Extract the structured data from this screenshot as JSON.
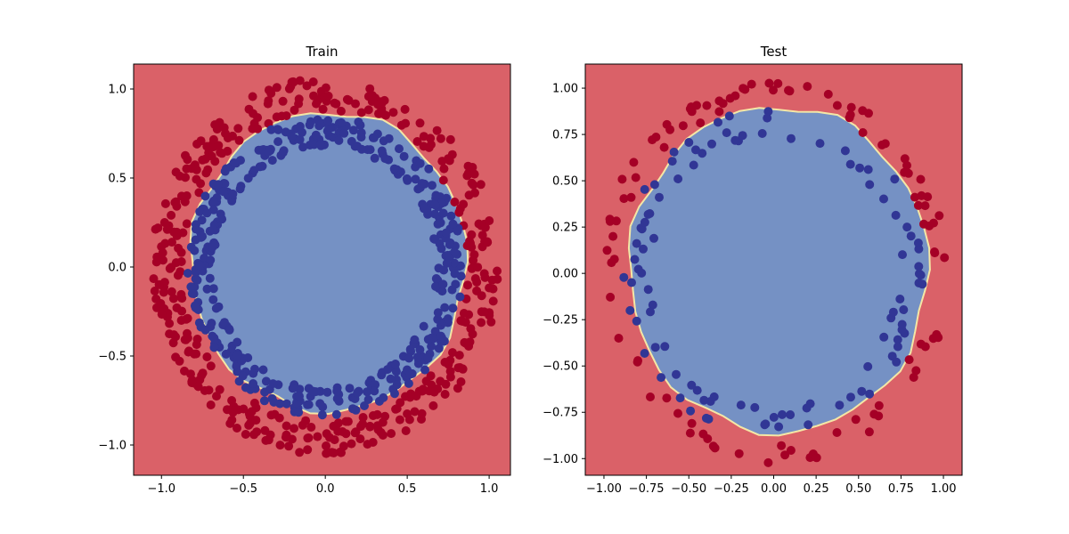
{
  "colors": {
    "outside_region": "#da6168",
    "inside_region": "#7591c4",
    "boundary": "#f4e7a6",
    "class_outer_points": "#a50026",
    "class_inner_points": "#313695"
  },
  "chart_data": [
    {
      "type": "scatter",
      "title": "Train",
      "xlabel": "",
      "ylabel": "",
      "xlim": [
        -1.17,
        1.13
      ],
      "ylim": [
        -1.17,
        1.14
      ],
      "x_ticks": [
        -1.0,
        -0.5,
        0.0,
        0.5,
        1.0
      ],
      "x_tick_labels": [
        "−1.0",
        "−0.5",
        "0.0",
        "0.5",
        "1.0"
      ],
      "y_ticks": [
        -1.0,
        -0.5,
        0.0,
        0.5,
        1.0
      ],
      "y_tick_labels": [
        "−1.0",
        "−0.5",
        "0.0",
        "0.5",
        "1.0"
      ],
      "decision_region": {
        "inside_class": 0,
        "center": [
          0.02,
          0.03
        ],
        "radius": 0.84
      },
      "classes": [
        {
          "label": 1,
          "color_key": "class_outer_points",
          "center": [
            0.0,
            0.0
          ],
          "radius_range": [
            0.87,
            1.06
          ],
          "count": 400,
          "seed": 11
        },
        {
          "label": 0,
          "color_key": "class_inner_points",
          "center": [
            0.0,
            0.0
          ],
          "radius_range": [
            0.68,
            0.84
          ],
          "count": 400,
          "seed": 23
        }
      ],
      "grid": false
    },
    {
      "type": "scatter",
      "title": "Test",
      "xlabel": "",
      "ylabel": "",
      "xlim": [
        -1.11,
        1.11
      ],
      "ylim": [
        -1.09,
        1.13
      ],
      "x_ticks": [
        -1.0,
        -0.75,
        -0.5,
        -0.25,
        0.0,
        0.25,
        0.5,
        0.75,
        1.0
      ],
      "x_tick_labels": [
        "−1.00",
        "−0.75",
        "−0.50",
        "−0.25",
        "0.00",
        "0.25",
        "0.50",
        "0.75",
        "1.00"
      ],
      "y_ticks": [
        -1.0,
        -0.75,
        -0.5,
        -0.25,
        0.0,
        0.25,
        0.5,
        0.75,
        1.0
      ],
      "y_tick_labels": [
        "−1.00",
        "−0.75",
        "−0.50",
        "−0.25",
        "0.00",
        "0.25",
        "0.50",
        "0.75",
        "1.00"
      ],
      "decision_region": {
        "inside_class": 0,
        "center": [
          0.03,
          0.02
        ],
        "radius": 0.88
      },
      "classes": [
        {
          "label": 1,
          "color_key": "class_outer_points",
          "center": [
            0.0,
            0.0
          ],
          "radius_range": [
            0.92,
            1.03
          ],
          "count": 100,
          "seed": 37
        },
        {
          "label": 0,
          "color_key": "class_inner_points",
          "center": [
            0.0,
            0.0
          ],
          "radius_range": [
            0.73,
            0.89
          ],
          "count": 100,
          "seed": 51
        }
      ],
      "grid": false
    }
  ]
}
